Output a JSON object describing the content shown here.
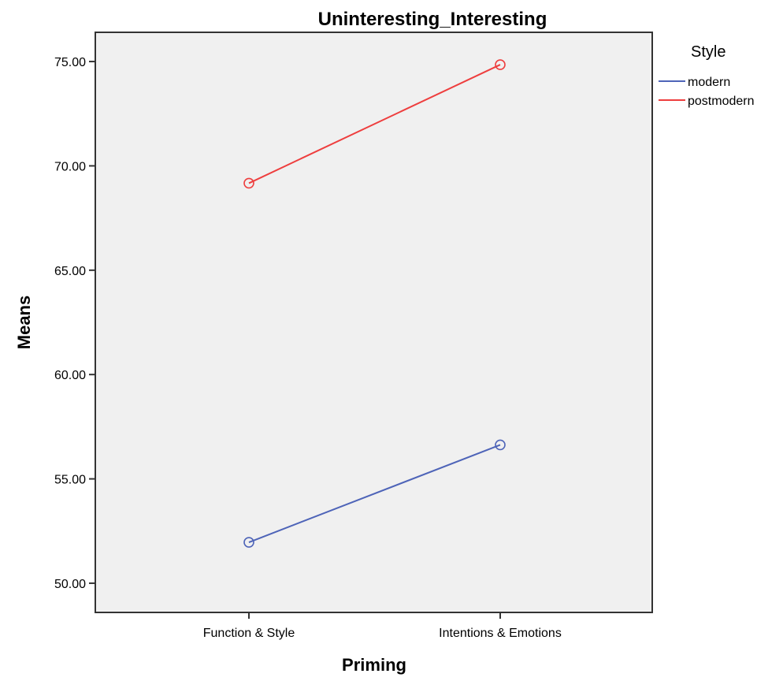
{
  "chart_data": {
    "type": "line",
    "title": "Uninteresting_Interesting",
    "xlabel": "Priming",
    "ylabel": "Means",
    "categories": [
      "Function & Style",
      "Intentions & Emotions"
    ],
    "ylim": [
      48.6,
      76.4
    ],
    "yticks": [
      50,
      55,
      60,
      65,
      70,
      75
    ],
    "ytick_labels": [
      "50.00",
      "55.00",
      "60.00",
      "65.00",
      "70.00",
      "75.00"
    ],
    "grid": false,
    "legend": {
      "title": "Style",
      "placement": "right"
    },
    "series": [
      {
        "name": "modern",
        "values": [
          51.96,
          56.63
        ],
        "color": "#4e64b8",
        "marker": "open-circle"
      },
      {
        "name": "postmodern",
        "values": [
          69.17,
          74.85
        ],
        "color": "#ee3e3e",
        "marker": "open-circle"
      }
    ],
    "plot_background": "#f0f0f0"
  }
}
